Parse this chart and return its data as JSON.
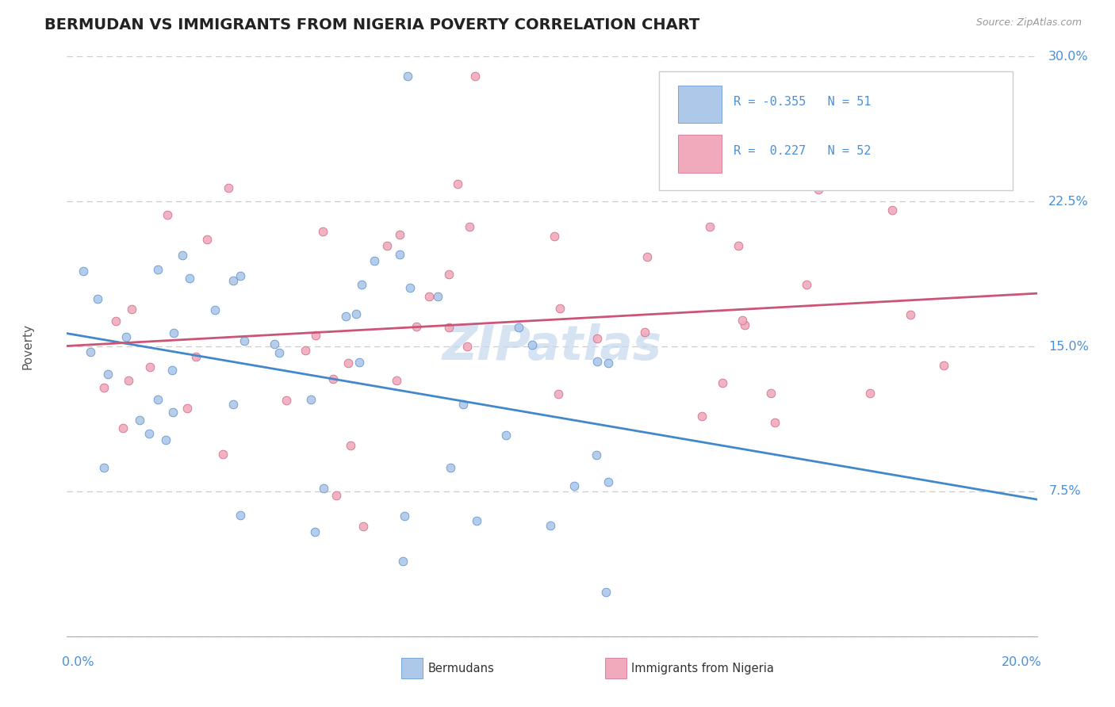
{
  "title": "BERMUDAN VS IMMIGRANTS FROM NIGERIA POVERTY CORRELATION CHART",
  "source": "Source: ZipAtlas.com",
  "bermudans_R": -0.355,
  "bermudans_N": 51,
  "nigeria_R": 0.227,
  "nigeria_N": 52,
  "berm_color": "#adc8e8",
  "berm_edge": "#5590cc",
  "berm_line": "#4488cc",
  "nig_color": "#f0aabb",
  "nig_edge": "#cc6688",
  "nig_line": "#cc5577",
  "watermark_color": "#c5d8ee",
  "background": "#ffffff",
  "grid_color": "#cccccc",
  "title_color": "#222222",
  "axis_val_color": "#4a90d9",
  "right_y_ticks": [
    0.075,
    0.15,
    0.225,
    0.3
  ],
  "right_y_labels": [
    "7.5%",
    "15.0%",
    "22.5%",
    "30.0%"
  ],
  "xlim": [
    0.0,
    0.2
  ],
  "ylim": [
    0.0,
    0.3
  ]
}
